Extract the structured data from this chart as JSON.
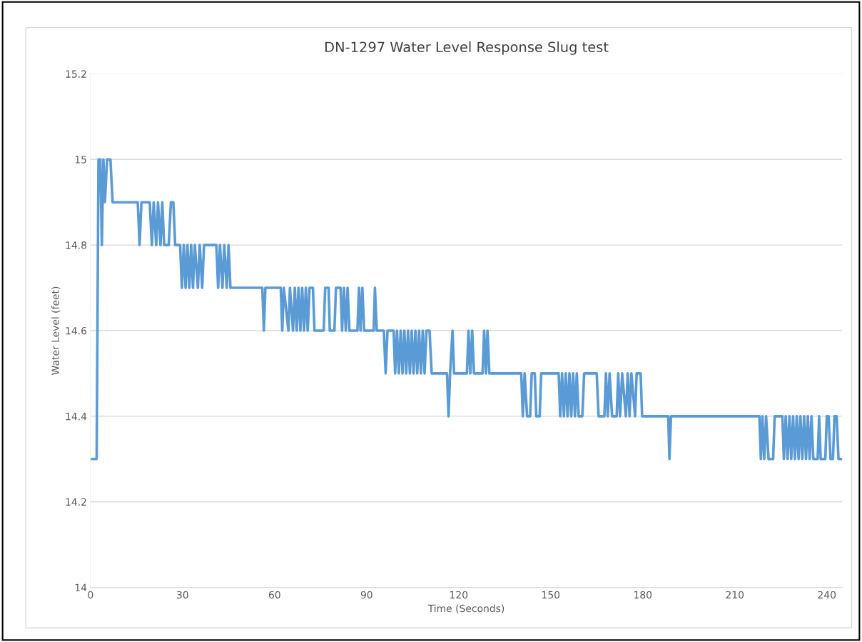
{
  "chart_data": {
    "type": "line",
    "title": "DN-1297 Water Level Response Slug test",
    "xlabel": "Time (Seconds)",
    "ylabel": "Water Level (feet)",
    "xlim": [
      0,
      245
    ],
    "xticks": [
      0,
      30,
      60,
      90,
      120,
      150,
      180,
      210,
      240
    ],
    "ylim": [
      14,
      15.2
    ],
    "yticks": [
      {
        "value": 14,
        "label": "14"
      },
      14.2,
      14.4,
      14.6,
      14.8,
      {
        "value": 15,
        "label": "15"
      },
      15.2
    ],
    "grid": "y",
    "marker": "none",
    "line_style": "solid",
    "series": [
      {
        "color": "#5b9bd5",
        "x": [
          0,
          2,
          2.6,
          3.2,
          3.7,
          4.2,
          4.7,
          5.4,
          6.5,
          7.2,
          15.4,
          16,
          16.6,
          19.3,
          20,
          20.6,
          21.4,
          22,
          22.8,
          23.4,
          24,
          25.5,
          26.2,
          27,
          27.6,
          29.2,
          29.8,
          30.4,
          31,
          31.6,
          32.2,
          32.8,
          33.4,
          34,
          35,
          35.6,
          36.4,
          37,
          41,
          41.6,
          42.2,
          43,
          43.6,
          44.4,
          45,
          45.6,
          56,
          56.5,
          57,
          62,
          62.5,
          63,
          64.5,
          65,
          66,
          66.6,
          67.2,
          67.8,
          68.4,
          69,
          69.6,
          70.2,
          70.8,
          71.4,
          72.5,
          73,
          76,
          76.5,
          77.6,
          78,
          79.5,
          80,
          81.5,
          82,
          82.6,
          83.2,
          83.8,
          84.4,
          87,
          87.5,
          88,
          88.6,
          89.2,
          92.3,
          92.7,
          93.3,
          95.6,
          96.2,
          96.8,
          98.8,
          99.3,
          99.9,
          100.5,
          101.1,
          101.7,
          102.3,
          102.9,
          103.5,
          104.1,
          104.7,
          105.3,
          105.9,
          106.5,
          107.1,
          107.7,
          108.3,
          108.9,
          109.5,
          110.5,
          111.2,
          116.2,
          116.7,
          117.2,
          118,
          118.5,
          122.7,
          123.2,
          123.8,
          124.4,
          125,
          127.8,
          128.3,
          128.9,
          129.4,
          130,
          140.4,
          140.9,
          141.5,
          142.3,
          143.3,
          143.8,
          144.8,
          145.3,
          146.4,
          146.9,
          152.6,
          153.1,
          153.7,
          154.3,
          154.9,
          155.5,
          156.1,
          156.7,
          157.3,
          157.9,
          158.5,
          159.1,
          160.3,
          160.9,
          165,
          165.6,
          167.5,
          168,
          168.6,
          169.2,
          170,
          171.5,
          172,
          172.6,
          173.3,
          174.5,
          175.1,
          175.7,
          176.3,
          177.5,
          178,
          179.3,
          179.8,
          188.3,
          188.7,
          189.2,
          218,
          218.5,
          219,
          219.6,
          220.2,
          221,
          222.5,
          223,
          225.5,
          226,
          226.6,
          227.2,
          227.8,
          228.4,
          229,
          229.6,
          230.2,
          230.8,
          231.4,
          232,
          232.6,
          233.2,
          233.8,
          234.4,
          235,
          235.6,
          237,
          237.5,
          238,
          239.5,
          240,
          240.6,
          241.2,
          242,
          242.5,
          243.2,
          243.8,
          245
        ],
        "values": [
          14.3,
          14.3,
          15.0,
          15.0,
          14.8,
          15.0,
          14.9,
          15.0,
          15.0,
          14.9,
          14.9,
          14.8,
          14.9,
          14.9,
          14.8,
          14.9,
          14.8,
          14.9,
          14.8,
          14.9,
          14.8,
          14.8,
          14.9,
          14.9,
          14.8,
          14.8,
          14.7,
          14.8,
          14.7,
          14.8,
          14.7,
          14.8,
          14.7,
          14.8,
          14.7,
          14.8,
          14.7,
          14.8,
          14.8,
          14.7,
          14.8,
          14.7,
          14.8,
          14.7,
          14.8,
          14.7,
          14.7,
          14.6,
          14.7,
          14.7,
          14.6,
          14.7,
          14.6,
          14.7,
          14.6,
          14.7,
          14.6,
          14.7,
          14.6,
          14.7,
          14.6,
          14.7,
          14.6,
          14.7,
          14.7,
          14.6,
          14.6,
          14.7,
          14.7,
          14.6,
          14.6,
          14.7,
          14.7,
          14.6,
          14.7,
          14.6,
          14.7,
          14.6,
          14.6,
          14.7,
          14.6,
          14.7,
          14.6,
          14.6,
          14.7,
          14.6,
          14.6,
          14.5,
          14.6,
          14.6,
          14.5,
          14.6,
          14.5,
          14.6,
          14.5,
          14.6,
          14.5,
          14.6,
          14.5,
          14.6,
          14.5,
          14.6,
          14.5,
          14.6,
          14.5,
          14.6,
          14.5,
          14.6,
          14.6,
          14.5,
          14.5,
          14.4,
          14.5,
          14.6,
          14.5,
          14.5,
          14.6,
          14.5,
          14.6,
          14.5,
          14.5,
          14.6,
          14.5,
          14.6,
          14.5,
          14.5,
          14.4,
          14.5,
          14.4,
          14.4,
          14.5,
          14.5,
          14.4,
          14.4,
          14.5,
          14.5,
          14.4,
          14.5,
          14.4,
          14.5,
          14.4,
          14.5,
          14.4,
          14.5,
          14.4,
          14.5,
          14.4,
          14.4,
          14.5,
          14.5,
          14.4,
          14.4,
          14.5,
          14.4,
          14.5,
          14.4,
          14.4,
          14.5,
          14.4,
          14.5,
          14.4,
          14.5,
          14.4,
          14.5,
          14.4,
          14.5,
          14.5,
          14.4,
          14.4,
          14.3,
          14.4,
          14.4,
          14.3,
          14.4,
          14.3,
          14.4,
          14.3,
          14.3,
          14.4,
          14.4,
          14.3,
          14.4,
          14.3,
          14.4,
          14.3,
          14.4,
          14.3,
          14.4,
          14.3,
          14.4,
          14.3,
          14.4,
          14.3,
          14.4,
          14.3,
          14.4,
          14.3,
          14.3,
          14.4,
          14.3,
          14.3,
          14.4,
          14.4,
          14.3,
          14.3,
          14.4,
          14.4,
          14.3,
          14.3
        ]
      }
    ]
  }
}
